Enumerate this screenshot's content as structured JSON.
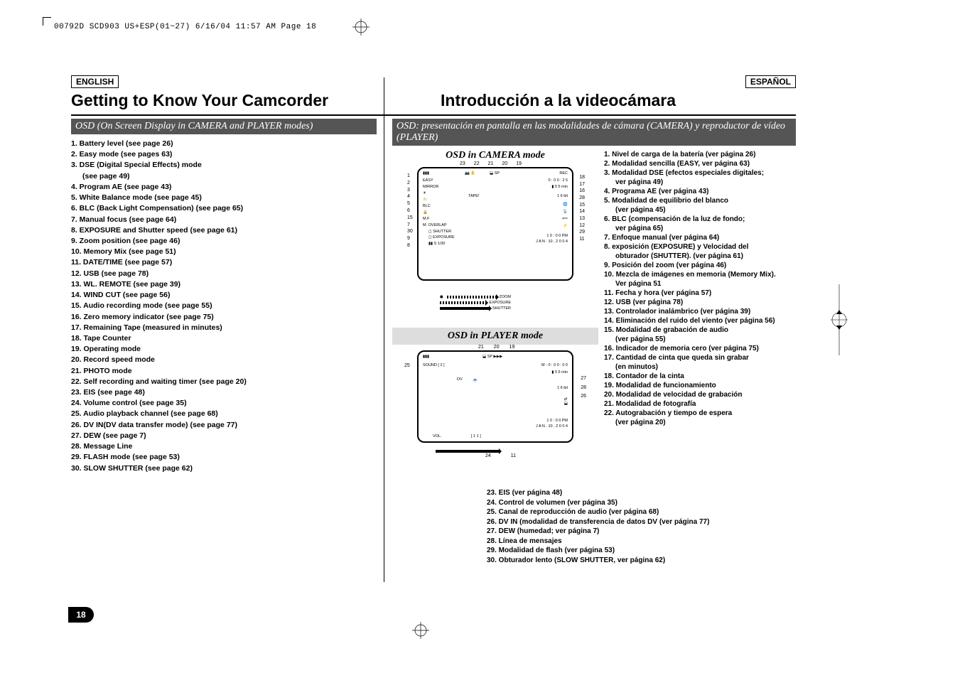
{
  "header_line": "00792D SCD903 US+ESP(01~27)  6/16/04 11:57 AM  Page 18",
  "lang": {
    "en": "ENGLISH",
    "es": "ESPAÑOL"
  },
  "titles": {
    "en": "Getting to Know Your Camcorder",
    "es": "Introducción a la videocámara"
  },
  "osd_banner": {
    "en": "OSD (On Screen Display in CAMERA and PLAYER modes)",
    "es": "OSD: presentación en pantalla en las modalidades de cámara (CAMERA) y reproductor de vídeo (PLAYER)"
  },
  "diagram_titles": {
    "camera": "OSD in CAMERA mode",
    "player": "OSD in PLAYER mode"
  },
  "features_en": [
    "1.  Battery level (see page 26)",
    "2.  Easy mode (see pages 63)",
    "3.  DSE (Digital Special Effects) mode",
    "     (see page 49)",
    "4.  Program AE (see page 43)",
    "5.  White Balance mode (see page 45)",
    "6.  BLC (Back Light Compensation) (see page 65)",
    "7.  Manual focus (see page 64)",
    "8.  EXPOSURE and Shutter speed  (see page 61)",
    "9.  Zoom position (see page 46)",
    "10. Memory Mix (see page 51)",
    "11. DATE/TIME (see page 57)",
    "12. USB (see page 78)",
    "13. WL. REMOTE (see page 39)",
    "14. WIND CUT (see page 56)",
    "15. Audio recording mode (see page 55)",
    "16. Zero memory indicator (see page 75)",
    "17. Remaining Tape (measured in minutes)",
    "18. Tape Counter",
    "19. Operating mode",
    "20. Record speed mode",
    "21. PHOTO mode",
    "22. Self recording and waiting timer (see page 20)",
    "23. EIS (see page 48)",
    "24. Volume control (see page 35)",
    "25. Audio playback channel (see page 68)",
    "26. DV IN(DV data transfer mode) (see page 77)",
    "27. DEW (see page 7)",
    "28. Message Line",
    "29. FLASH mode (see page 53)",
    "30. SLOW SHUTTER (see page 62)"
  ],
  "features_es_right": [
    "1.  Nivel de carga de la batería (ver página 26)",
    "2.  Modalidad sencilla (EASY, ver página 63)",
    "3.  Modalidad DSE (efectos especiales digitales;",
    "     ver página 49)",
    "4.  Programa AE (ver página 43)",
    "5.  Modalidad de equilibrio del blanco",
    "     (ver página 45)",
    "6.  BLC (compensación de la luz de fondo;",
    "     ver página 65)",
    "7.  Enfoque manual (ver página 64)",
    "8.  exposición (EXPOSURE) y Velocidad del",
    "     obturador (SHUTTER). (ver página 61)",
    "9.  Posición del zoom (ver página 46)",
    "10. Mezcla de imágenes en memoria (Memory Mix).",
    "     Ver página 51",
    "11. Fecha y hora (ver página 57)",
    "12. USB (ver página 78)",
    "13. Controlador inalámbrico (ver página 39)",
    "14. Eliminación del ruido del viento (ver página 56)",
    "15. Modalidad de grabación de audio",
    "     (ver página 55)",
    "16. Indicador de memoria cero (ver página 75)",
    "17. Cantidad de cinta que queda sin grabar",
    "     (en minutos)",
    "18. Contador de la cinta",
    "19. Modalidad de funcionamiento",
    "20. Modalidad de velocidad de grabación",
    "21. Modalidad de fotografía",
    "22. Autograbación y tiempo de espera",
    "     (ver página 20)"
  ],
  "features_es_bottom": [
    "23. EIS (ver página 48)",
    "24. Control de volumen (ver página 35)",
    "25. Canal de reproducción de audio (ver página 68)",
    "26. DV IN (modalidad de transferencia de datos DV (ver página 77)",
    "27. DEW (humedad; ver página 7)",
    "28. Línea de mensajes",
    "29. Modalidad de flash (ver página 53)",
    "30. Obturador lento (SLOW SHUTTER, ver página 62)"
  ],
  "camera_osd": {
    "top_nums": [
      "23",
      "22",
      "21",
      "20",
      "19"
    ],
    "left_nums": [
      "1",
      "2",
      "3",
      "4",
      "5",
      "6",
      "15",
      "7",
      "",
      "30",
      "",
      "9",
      "8"
    ],
    "right_nums": [
      "18",
      "17",
      "16",
      "28",
      "15",
      "14",
      "13",
      "12",
      "29",
      "11"
    ],
    "inner": {
      "easy": "EASY",
      "mirror": "MIRROR",
      "blc": "BLC",
      "mf": "M.F",
      "overlap": "M. OVERLAP",
      "shutter": "SHUTTER",
      "exposure": "EXPOSURE",
      "slow": "S 1/30",
      "rec": "REC",
      "counter": "0 : 0 0 : 2 5",
      "remain": "5 5 min",
      "tapeend": "TAPE!",
      "bit": "1 6 bit",
      "time": "1 0 : 0 0 PM",
      "date": "J A N .  10 ,  2 0 0 4",
      "zoom": "ZOOM",
      "exp2": "EXPOSURE",
      "sht2": "SHUTTER"
    }
  },
  "player_osd": {
    "top_nums": [
      "21",
      "20",
      "19"
    ],
    "left_num": "25",
    "right_nums": [
      "27",
      "28",
      "26"
    ],
    "bottom_nums": [
      "24",
      "11"
    ],
    "inner": {
      "sound": "SOUND [ 2 ]",
      "counter": "M - 0 : 0 0 : 0 0",
      "remain": "5 5 min",
      "bit": "1 6 bit",
      "dv": "DV",
      "time": "1 0 : 0 0 PM",
      "date": "J A N .  10 ,  2 0 0 4",
      "vol": "VOL.",
      "volval": "[ 1 1 ]"
    }
  },
  "page_number": "18",
  "colors": {
    "banner_bg": "#555555",
    "banner_fg": "#ffffff",
    "diagram2_bg": "#dddddd",
    "text": "#000000"
  }
}
